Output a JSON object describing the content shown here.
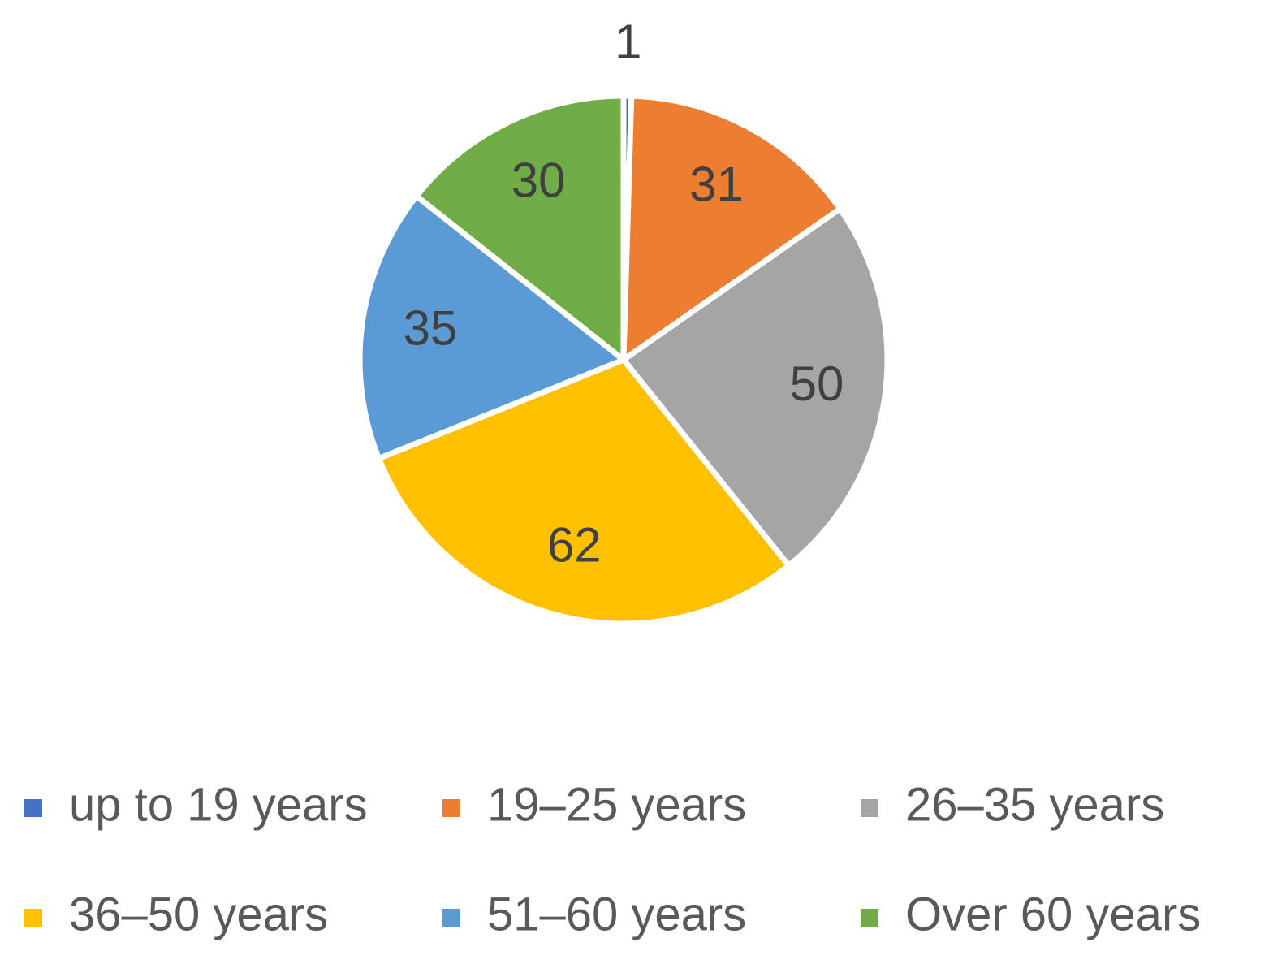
{
  "chart_data": {
    "type": "pie",
    "categories": [
      "up to 19 years",
      "19–25 years",
      "26–35 years",
      "36–50 years",
      "51–60 years",
      "Over 60 years"
    ],
    "values": [
      1,
      31,
      50,
      62,
      35,
      30
    ],
    "colors": [
      "#4472c4",
      "#ed7d31",
      "#a5a5a5",
      "#ffc000",
      "#5b9bd5",
      "#70ad47"
    ],
    "legend": "bottom"
  }
}
